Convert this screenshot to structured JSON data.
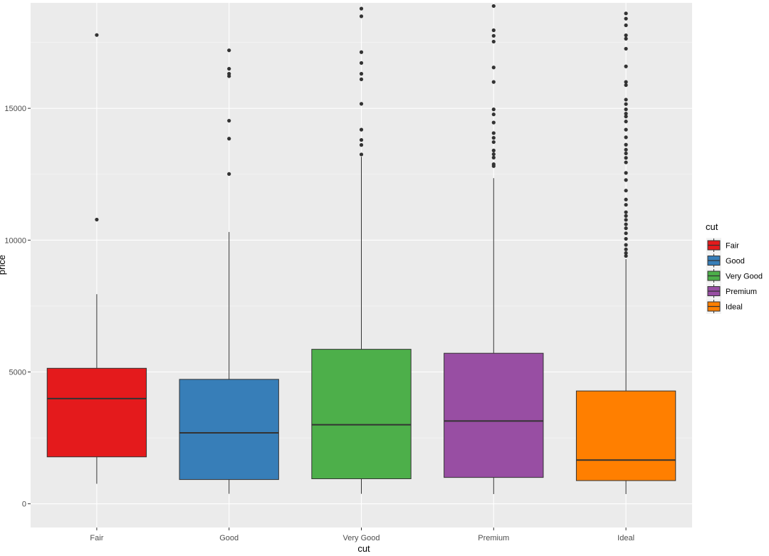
{
  "chart_data": {
    "type": "boxplot",
    "xlabel": "cut",
    "ylabel": "price",
    "ylim": [
      -900,
      19000
    ],
    "yticks": [
      0,
      5000,
      10000,
      15000
    ],
    "grid": true,
    "legend": {
      "title": "cut",
      "position": "right",
      "entries": [
        "Fair",
        "Good",
        "Very Good",
        "Premium",
        "Ideal"
      ]
    },
    "categories": [
      "Fair",
      "Good",
      "Very Good",
      "Premium",
      "Ideal"
    ],
    "colors": [
      "#e41a1c",
      "#377eb8",
      "#4daf4a",
      "#984ea3",
      "#ff7f00"
    ],
    "boxes": [
      {
        "category": "Fair",
        "lower_whisker": 760,
        "q1": 1780,
        "median": 3990,
        "q3": 5140,
        "upper_whisker": 7950,
        "outliers": [
          17780,
          10780
        ]
      },
      {
        "category": "Good",
        "lower_whisker": 380,
        "q1": 920,
        "median": 2690,
        "q3": 4720,
        "upper_whisker": 10310,
        "outliers": [
          17200,
          16500,
          16310,
          16220,
          14530,
          13850,
          12510
        ]
      },
      {
        "category": "Very Good",
        "lower_whisker": 380,
        "q1": 950,
        "median": 3000,
        "q3": 5860,
        "upper_whisker": 13160,
        "outliers": [
          18780,
          18490,
          17130,
          16720,
          16310,
          16100,
          15170,
          14190,
          13800,
          13610,
          13250
        ]
      },
      {
        "category": "Premium",
        "lower_whisker": 370,
        "q1": 1000,
        "median": 3140,
        "q3": 5710,
        "upper_whisker": 12350,
        "outliers": [
          18880,
          17960,
          17750,
          17530,
          16550,
          16000,
          14960,
          14770,
          14460,
          14060,
          13880,
          13720,
          13400,
          13260,
          13130,
          12880,
          12810
        ]
      },
      {
        "category": "Ideal",
        "lower_whisker": 370,
        "q1": 880,
        "median": 1660,
        "q3": 4280,
        "upper_whisker": 9280,
        "outliers": [
          18600,
          18400,
          18150,
          17770,
          17640,
          17260,
          16590,
          16000,
          15880,
          15330,
          15160,
          14960,
          14800,
          14690,
          14500,
          14190,
          13900,
          13620,
          13430,
          13290,
          13120,
          12950,
          12550,
          12280,
          11880,
          11540,
          11340,
          11060,
          10920,
          10770,
          10600,
          10450,
          10260,
          10050,
          9820,
          9650,
          9510,
          9400
        ]
      }
    ]
  }
}
